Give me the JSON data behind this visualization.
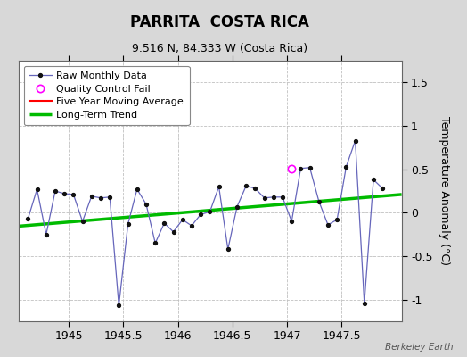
{
  "title": "PARRITA  COSTA RICA",
  "subtitle": "9.516 N, 84.333 W (Costa Rica)",
  "ylabel": "Temperature Anomaly (°C)",
  "watermark": "Berkeley Earth",
  "xlim": [
    1944.54,
    1948.05
  ],
  "ylim": [
    -1.25,
    1.75
  ],
  "yticks": [
    -1.0,
    -0.5,
    0.0,
    0.5,
    1.0,
    1.5
  ],
  "xticks": [
    1945.0,
    1945.5,
    1946.0,
    1946.5,
    1947.0,
    1947.5
  ],
  "xtick_labels": [
    "1945",
    "1945.5",
    "1946",
    "1946.5",
    "1947",
    "1947.5"
  ],
  "background_color": "#d8d8d8",
  "plot_bg_color": "#ffffff",
  "grid_color": "#c0c0c0",
  "raw_data_x": [
    1944.625,
    1944.708,
    1944.792,
    1944.875,
    1944.958,
    1945.042,
    1945.125,
    1945.208,
    1945.292,
    1945.375,
    1945.458,
    1945.542,
    1945.625,
    1945.708,
    1945.792,
    1945.875,
    1945.958,
    1946.042,
    1946.125,
    1946.208,
    1946.292,
    1946.375,
    1946.458,
    1946.542,
    1946.625,
    1946.708,
    1946.792,
    1946.875,
    1946.958,
    1947.042,
    1947.125,
    1947.208,
    1947.292,
    1947.375,
    1947.458,
    1947.542,
    1947.625,
    1947.708,
    1947.792,
    1947.875
  ],
  "raw_data_y": [
    -0.07,
    0.27,
    -0.25,
    0.25,
    0.22,
    0.21,
    -0.1,
    0.19,
    0.17,
    0.18,
    -1.07,
    -0.13,
    0.27,
    0.1,
    -0.35,
    -0.12,
    -0.22,
    -0.08,
    -0.15,
    -0.02,
    0.01,
    0.3,
    -0.42,
    0.07,
    0.31,
    0.28,
    0.17,
    0.18,
    0.18,
    -0.1,
    0.51,
    0.52,
    0.13,
    -0.14,
    -0.08,
    0.53,
    0.83,
    -1.04,
    0.38,
    0.28
  ],
  "qc_fail_x": [
    1947.042
  ],
  "qc_fail_y": [
    0.51
  ],
  "trend_x": [
    1944.54,
    1948.05
  ],
  "trend_y": [
    -0.155,
    0.21
  ],
  "raw_line_color": "#6666bb",
  "raw_marker_color": "#111111",
  "qc_color": "#ff00ff",
  "trend_color": "#00bb00",
  "five_year_color": "#ff0000",
  "title_fontsize": 12,
  "subtitle_fontsize": 9,
  "legend_fontsize": 8,
  "tick_fontsize": 9
}
